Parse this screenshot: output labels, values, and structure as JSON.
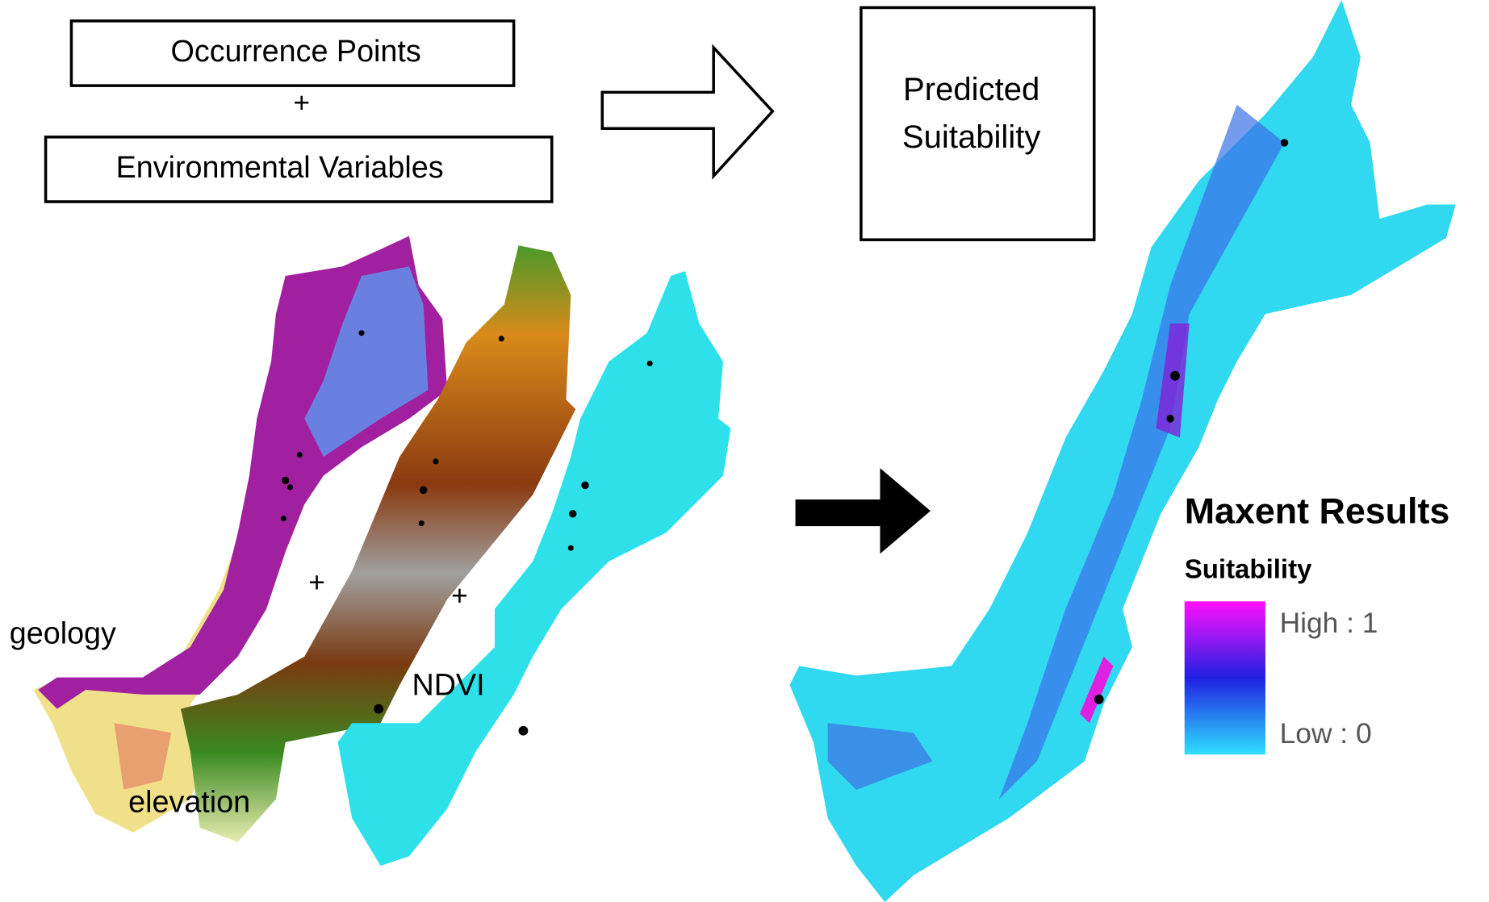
{
  "inputs": {
    "occurrence": "Occurrence Points",
    "plus": "+",
    "environmental": "Environmental Variables"
  },
  "output": {
    "line1": "Predicted",
    "line2": "Suitability"
  },
  "maps": {
    "geology": "geology",
    "elevation": "elevation",
    "ndvi": "NDVI",
    "plus1": "+",
    "plus2": "+"
  },
  "legend": {
    "title": "Maxent Results",
    "subtitle": "Suitability",
    "high": "High : 1",
    "low": "Low : 0"
  }
}
